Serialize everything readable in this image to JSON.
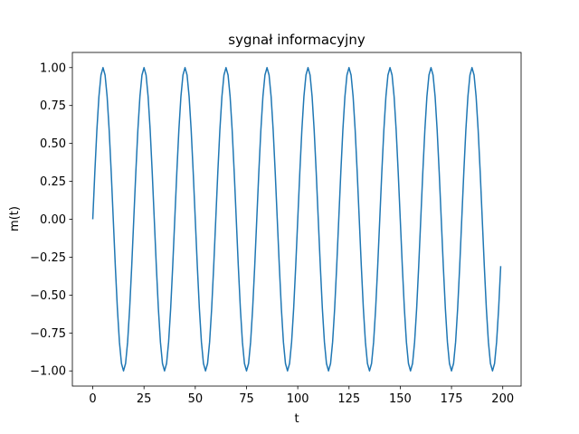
{
  "chart_data": {
    "type": "line",
    "title": "sygnał informacyjny",
    "xlabel": "t",
    "ylabel": "m(t)",
    "x": [
      0,
      1,
      2,
      3,
      4,
      5,
      6,
      7,
      8,
      9,
      10,
      11,
      12,
      13,
      14,
      15,
      16,
      17,
      18,
      19,
      20,
      21,
      22,
      23,
      24,
      25,
      26,
      27,
      28,
      29,
      30,
      31,
      32,
      33,
      34,
      35,
      36,
      37,
      38,
      39,
      40,
      41,
      42,
      43,
      44,
      45,
      46,
      47,
      48,
      49,
      50,
      51,
      52,
      53,
      54,
      55,
      56,
      57,
      58,
      59,
      60,
      61,
      62,
      63,
      64,
      65,
      66,
      67,
      68,
      69,
      70,
      71,
      72,
      73,
      74,
      75,
      76,
      77,
      78,
      79,
      80,
      81,
      82,
      83,
      84,
      85,
      86,
      87,
      88,
      89,
      90,
      91,
      92,
      93,
      94,
      95,
      96,
      97,
      98,
      99,
      100,
      101,
      102,
      103,
      104,
      105,
      106,
      107,
      108,
      109,
      110,
      111,
      112,
      113,
      114,
      115,
      116,
      117,
      118,
      119,
      120,
      121,
      122,
      123,
      124,
      125,
      126,
      127,
      128,
      129,
      130,
      131,
      132,
      133,
      134,
      135,
      136,
      137,
      138,
      139,
      140,
      141,
      142,
      143,
      144,
      145,
      146,
      147,
      148,
      149,
      150,
      151,
      152,
      153,
      154,
      155,
      156,
      157,
      158,
      159,
      160,
      161,
      162,
      163,
      164,
      165,
      166,
      167,
      168,
      169,
      170,
      171,
      172,
      173,
      174,
      175,
      176,
      177,
      178,
      179,
      180,
      181,
      182,
      183,
      184,
      185,
      186,
      187,
      188,
      189,
      190,
      191,
      192,
      193,
      194,
      195,
      196,
      197,
      198,
      199
    ],
    "series": [
      {
        "color": "#1f77b4",
        "values": [
          0,
          0.309,
          0.588,
          0.809,
          0.951,
          1,
          0.951,
          0.809,
          0.588,
          0.309,
          0,
          -0.309,
          -0.588,
          -0.809,
          -0.951,
          -1,
          -0.951,
          -0.809,
          -0.588,
          -0.309,
          0,
          0.309,
          0.588,
          0.809,
          0.951,
          1,
          0.951,
          0.809,
          0.588,
          0.309,
          0,
          -0.309,
          -0.588,
          -0.809,
          -0.951,
          -1,
          -0.951,
          -0.809,
          -0.588,
          -0.309,
          0,
          0.309,
          0.588,
          0.809,
          0.951,
          1,
          0.951,
          0.809,
          0.588,
          0.309,
          0,
          -0.309,
          -0.588,
          -0.809,
          -0.951,
          -1,
          -0.951,
          -0.809,
          -0.588,
          -0.309,
          0,
          0.309,
          0.588,
          0.809,
          0.951,
          1,
          0.951,
          0.809,
          0.588,
          0.309,
          0,
          -0.309,
          -0.588,
          -0.809,
          -0.951,
          -1,
          -0.951,
          -0.809,
          -0.588,
          -0.309,
          0,
          0.309,
          0.588,
          0.809,
          0.951,
          1,
          0.951,
          0.809,
          0.588,
          0.309,
          0,
          -0.309,
          -0.588,
          -0.809,
          -0.951,
          -1,
          -0.951,
          -0.809,
          -0.588,
          -0.309,
          0,
          0.309,
          0.588,
          0.809,
          0.951,
          1,
          0.951,
          0.809,
          0.588,
          0.309,
          0,
          -0.309,
          -0.588,
          -0.809,
          -0.951,
          -1,
          -0.951,
          -0.809,
          -0.588,
          -0.309,
          0,
          0.309,
          0.588,
          0.809,
          0.951,
          1,
          0.951,
          0.809,
          0.588,
          0.309,
          0,
          -0.309,
          -0.588,
          -0.809,
          -0.951,
          -1,
          -0.951,
          -0.809,
          -0.588,
          -0.309,
          0,
          0.309,
          0.588,
          0.809,
          0.951,
          1,
          0.951,
          0.809,
          0.588,
          0.309,
          0,
          -0.309,
          -0.588,
          -0.809,
          -0.951,
          -1,
          -0.951,
          -0.809,
          -0.588,
          -0.309,
          0,
          0.309,
          0.588,
          0.809,
          0.951,
          1,
          0.951,
          0.809,
          0.588,
          0.309,
          0,
          -0.309,
          -0.588,
          -0.809,
          -0.951,
          -1,
          -0.951,
          -0.809,
          -0.588,
          -0.309,
          0,
          0.309,
          0.588,
          0.809,
          0.951,
          1,
          0.951,
          0.809,
          0.588,
          0.309,
          0,
          -0.309,
          -0.588,
          -0.809,
          -0.951,
          -1,
          -0.951,
          -0.809,
          -0.588,
          -0.309
        ]
      }
    ],
    "xlim": [
      -9.95,
      208.95
    ],
    "xticks": [
      0,
      25,
      50,
      75,
      100,
      125,
      150,
      175,
      200
    ],
    "ylim": [
      -1.1,
      1.1
    ],
    "yticks": [
      {
        "value": -1,
        "label": "−1.00"
      },
      {
        "value": -0.75,
        "label": "−0.75"
      },
      {
        "value": -0.5,
        "label": "−0.50"
      },
      {
        "value": -0.25,
        "label": "−0.25"
      },
      {
        "value": 0,
        "label": "0.00"
      },
      {
        "value": 0.25,
        "label": "0.25"
      },
      {
        "value": 0.5,
        "label": "0.50"
      },
      {
        "value": 0.75,
        "label": "0.75"
      },
      {
        "value": 1,
        "label": "1.00"
      }
    ],
    "grid": false
  }
}
